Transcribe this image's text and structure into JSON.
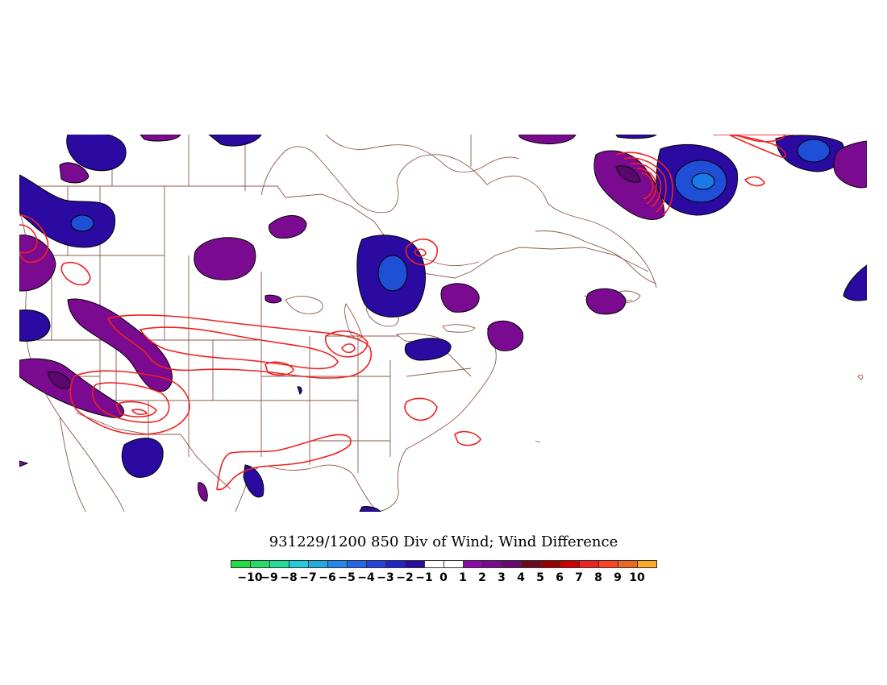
{
  "title": "931229/1200 850 Div of Wind; Wind Difference",
  "legend": {
    "colors": [
      "#22dd44",
      "#22dd66",
      "#22dd99",
      "#22ccdd",
      "#22aadd",
      "#2288ee",
      "#2266ee",
      "#2244dd",
      "#2222cc",
      "#2a0aa0",
      "#ffffff",
      "#ffffff",
      "#8a0aa8",
      "#7a0a90",
      "#6a0a70",
      "#6e0a20",
      "#990000",
      "#cc0000",
      "#ee2222",
      "#ff4422",
      "#ee6622",
      "#ffaa22"
    ],
    "tick_labels": [
      "−10",
      "−9",
      "−8",
      "−7",
      "−6",
      "−5",
      "−4",
      "−3",
      "−2",
      "−1",
      "0",
      "1",
      "2",
      "3",
      "4",
      "5",
      "6",
      "7",
      "8",
      "9",
      "10"
    ]
  },
  "map": {
    "field_colors": {
      "negative_fill": "#2a0aa0",
      "negative_inner": "#1e4fd6",
      "negative_core": "#1a7ae6",
      "positive_fill": "#7a0a90",
      "positive_inner": "#5a0870",
      "contour_line": "#ee2222",
      "borders": "#8a5a4a"
    }
  }
}
